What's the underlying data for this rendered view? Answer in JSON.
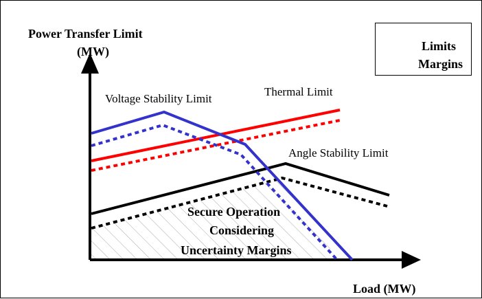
{
  "axes": {
    "y_label_line1": "Power Transfer Limit",
    "y_label_line2": "(MW)",
    "x_label": "Load (MW)"
  },
  "curves": {
    "voltage": "Voltage Stability Limit",
    "thermal": "Thermal Limit",
    "angle": "Angle Stability Limit"
  },
  "region": {
    "line1": "Secure Operation",
    "line2": "Considering",
    "line3": "Uncertainty Margins"
  },
  "legend": {
    "limits": "Limits",
    "margins": "Margins"
  },
  "colors": {
    "voltage": "#3333cc",
    "thermal": "#ff0000",
    "angle": "#000000",
    "hatch": "#aaaaaa"
  }
}
